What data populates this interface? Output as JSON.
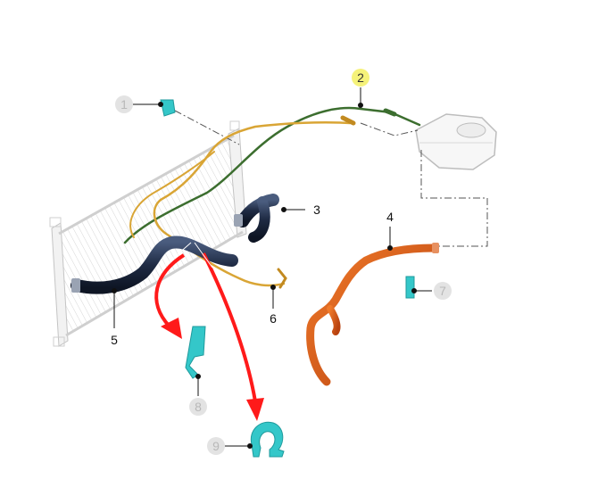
{
  "diagram": {
    "callouts": [
      {
        "id": "1",
        "label": "1",
        "style": "gray"
      },
      {
        "id": "2",
        "label": "2",
        "style": "highlight"
      },
      {
        "id": "3",
        "label": "3",
        "style": "plain"
      },
      {
        "id": "4",
        "label": "4",
        "style": "plain"
      },
      {
        "id": "5",
        "label": "5",
        "style": "plain"
      },
      {
        "id": "6",
        "label": "6",
        "style": "plain"
      },
      {
        "id": "7",
        "label": "7",
        "style": "gray"
      },
      {
        "id": "8",
        "label": "8",
        "style": "gray"
      },
      {
        "id": "9",
        "label": "9",
        "style": "gray"
      }
    ],
    "colors": {
      "highlight_fill": "#f5f27a",
      "gray_fill": "#e3e3e3",
      "gray_text": "#b8b8b8",
      "green_hose": "#3c6e2f",
      "yellow_hose": "#d9a535",
      "orange_hose": "#d9561b",
      "dark_hose": "#1f2b44",
      "clip_cyan": "#34c7c9",
      "arrow_red": "#ff1a1a",
      "radiator_line": "#c9c9c9"
    }
  }
}
